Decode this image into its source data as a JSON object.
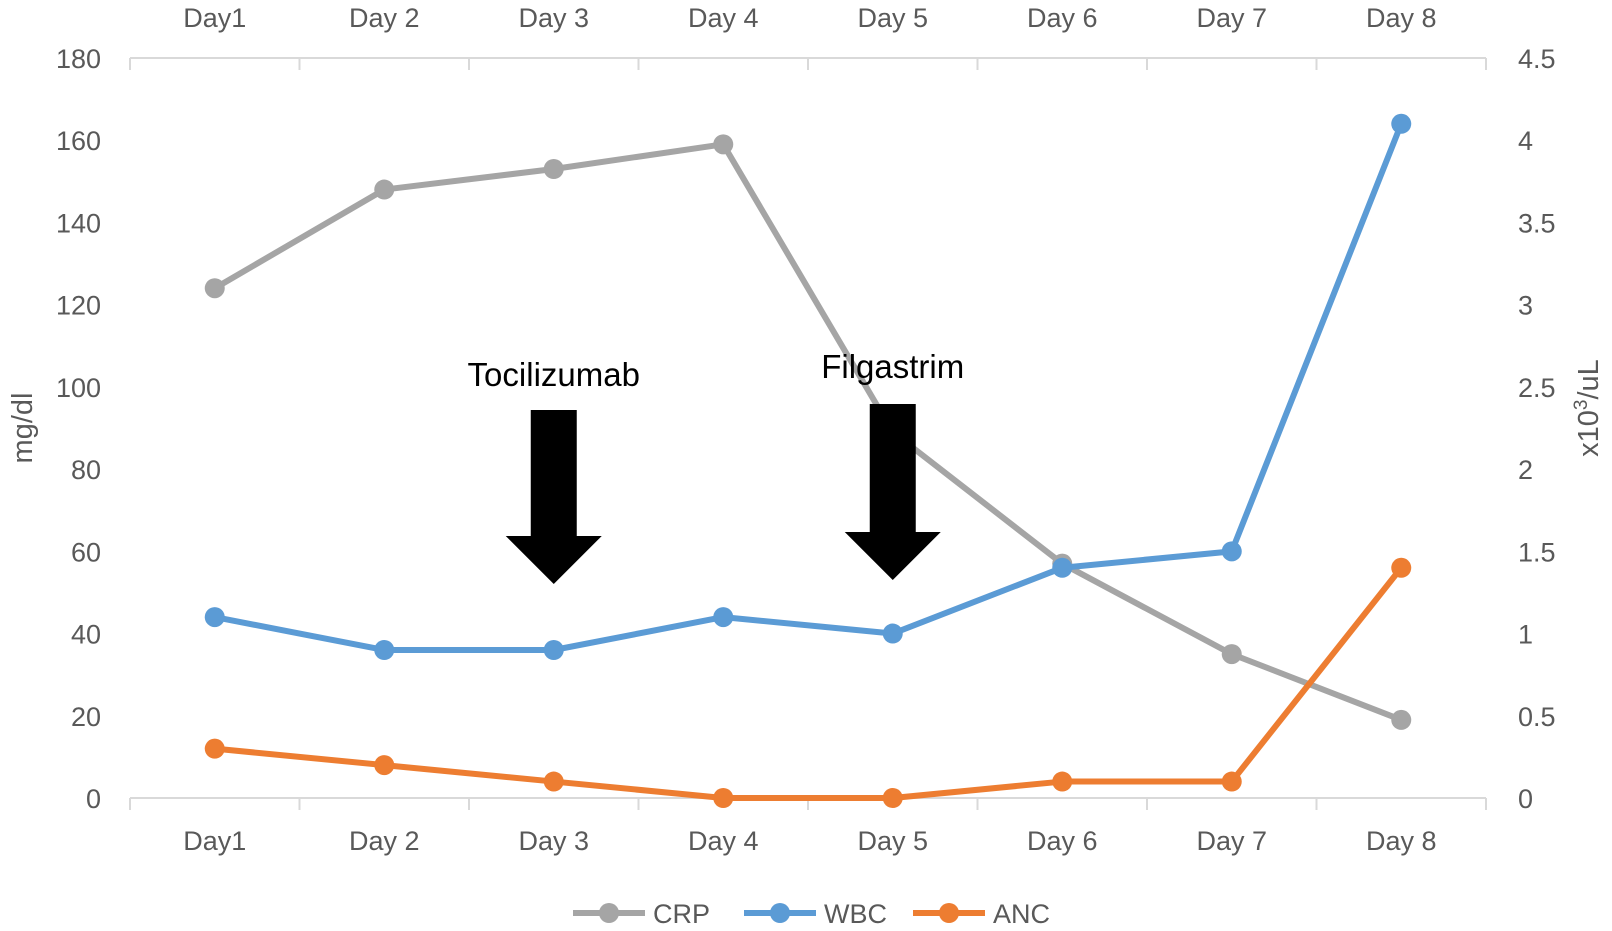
{
  "chart_data": {
    "type": "line",
    "categories": [
      "Day1",
      "Day 2",
      "Day 3",
      "Day 4",
      "Day 5",
      "Day 6",
      "Day 7",
      "Day 8"
    ],
    "top_categories": [
      "Day1",
      "Day 2",
      "Day 3",
      "Day 4",
      "Day 5",
      "Day 6",
      "Day 7",
      "Day 8"
    ],
    "ylabel": "mg/dl",
    "y2label_prefix": "x10",
    "y2label_sup": "3",
    "y2label_suffix": "/uL",
    "ylim": [
      0,
      180
    ],
    "y2lim": [
      0,
      4.5
    ],
    "yticks": [
      "0",
      "20",
      "40",
      "60",
      "80",
      "100",
      "120",
      "140",
      "160",
      "180"
    ],
    "y2ticks": [
      "0",
      "0.5",
      "1",
      "1.5",
      "2",
      "2.5",
      "3",
      "3.5",
      "4",
      "4.5"
    ],
    "series": [
      {
        "name": "CRP",
        "axis": "left",
        "color": "#a5a5a5",
        "values": [
          124,
          148,
          153,
          159,
          89,
          57,
          35,
          19
        ]
      },
      {
        "name": "WBC",
        "axis": "right",
        "color": "#5b9bd5",
        "values": [
          1.1,
          0.9,
          0.9,
          1.1,
          1.0,
          1.4,
          1.5,
          4.1
        ]
      },
      {
        "name": "ANC",
        "axis": "right",
        "color": "#ed7d31",
        "values": [
          0.3,
          0.2,
          0.1,
          0.0,
          0.0,
          0.1,
          0.1,
          1.4
        ]
      }
    ],
    "annotations": [
      {
        "text": "Tocilizumab",
        "category_index": 2
      },
      {
        "text": "Filgastrim",
        "category_index": 4
      }
    ],
    "grid": false,
    "legend_position": "bottom"
  }
}
